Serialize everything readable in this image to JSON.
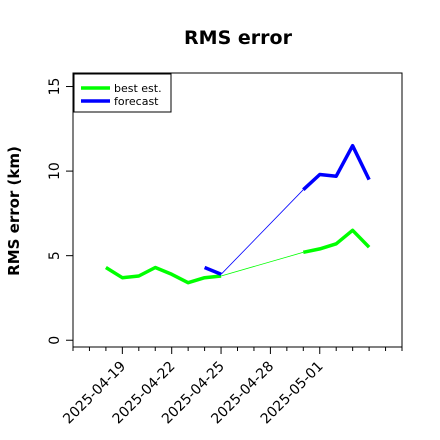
{
  "chart_data": {
    "type": "line",
    "title": "RMS error",
    "xlabel": "",
    "ylabel": "RMS error (km)",
    "x_tick_labels": [
      "2025-04-19",
      "2025-04-22",
      "2025-04-25",
      "2025-04-28",
      "2025-05-01"
    ],
    "ylim": [
      -0.4,
      15.8
    ],
    "y_ticks": [
      "0",
      "5",
      "10",
      "15"
    ],
    "legend": {
      "placement": "top-left",
      "entries": [
        "best est.",
        "forecast"
      ]
    },
    "grid": false,
    "series": [
      {
        "name": "best est.",
        "color": "#00ff00",
        "style": "thick",
        "x": [
          "2025-04-18",
          "2025-04-19",
          "2025-04-20",
          "2025-04-21",
          "2025-04-22",
          "2025-04-23",
          "2025-04-24",
          "2025-04-25"
        ],
        "y": [
          4.3,
          3.7,
          3.8,
          4.3,
          3.9,
          3.4,
          3.7,
          3.8
        ]
      },
      {
        "name": "best est.",
        "color": "#00ff00",
        "style": "thick",
        "x": [
          "2025-04-30",
          "2025-05-01",
          "2025-05-02",
          "2025-05-03",
          "2025-05-04"
        ],
        "y": [
          5.2,
          5.4,
          5.7,
          6.5,
          5.5
        ]
      },
      {
        "name": "best est.",
        "color": "#00ff00",
        "style": "thin",
        "x": [
          "2025-04-25",
          "2025-04-30"
        ],
        "y": [
          3.8,
          5.2
        ]
      },
      {
        "name": "forecast",
        "color": "#0000ff",
        "style": "thick",
        "x": [
          "2025-04-24",
          "2025-04-25"
        ],
        "y": [
          4.3,
          3.9
        ]
      },
      {
        "name": "forecast",
        "color": "#0000ff",
        "style": "thick",
        "x": [
          "2025-04-30",
          "2025-05-01",
          "2025-05-02",
          "2025-05-03",
          "2025-05-04"
        ],
        "y": [
          8.9,
          9.8,
          9.7,
          11.5,
          9.5
        ]
      },
      {
        "name": "forecast",
        "color": "#0000ff",
        "style": "thin",
        "x": [
          "2025-04-25",
          "2025-04-30"
        ],
        "y": [
          3.9,
          8.9
        ]
      }
    ]
  }
}
